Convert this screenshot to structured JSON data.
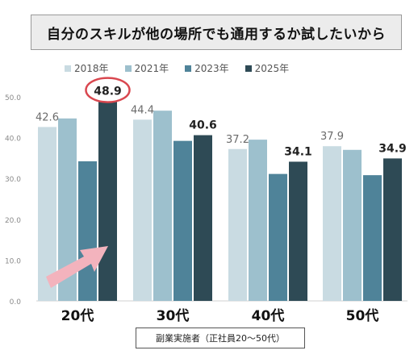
{
  "title": "自分のスキルが他の場所でも通用するか試したいから",
  "note": "副業実施者（正社員20～50代）",
  "colors": {
    "2018年": "#c9dbe2",
    "2021年": "#9dc0cd",
    "2023年": "#4f8399",
    "2025年": "#2e4a55",
    "highlight_ring": "#d9474f",
    "arrow": "#f3b3bd"
  },
  "chart_data": {
    "type": "bar",
    "categories": [
      "20代",
      "30代",
      "40代",
      "50代"
    ],
    "series": [
      {
        "name": "2018年",
        "values": [
          42.6,
          44.4,
          37.2,
          37.9
        ]
      },
      {
        "name": "2021年",
        "values": [
          44.7,
          46.6,
          39.5,
          37.0
        ]
      },
      {
        "name": "2023年",
        "values": [
          34.2,
          39.2,
          31.1,
          30.8
        ]
      },
      {
        "name": "2025年",
        "values": [
          48.9,
          40.6,
          34.1,
          34.9
        ]
      }
    ],
    "data_labels": [
      {
        "category": "20代",
        "series": "2018年",
        "text": "42.6"
      },
      {
        "category": "20代",
        "series": "2025年",
        "text": "48.9"
      },
      {
        "category": "30代",
        "series": "2018年",
        "text": "44.4"
      },
      {
        "category": "30代",
        "series": "2025年",
        "text": "40.6"
      },
      {
        "category": "40代",
        "series": "2018年",
        "text": "37.2"
      },
      {
        "category": "40代",
        "series": "2025年",
        "text": "34.1"
      },
      {
        "category": "50代",
        "series": "2018年",
        "text": "37.9"
      },
      {
        "category": "50代",
        "series": "2025年",
        "text": "34.9"
      }
    ],
    "highlight": {
      "category": "20代",
      "series": "2025年"
    },
    "y_ticks": [
      "0.0",
      "10.0",
      "20.0",
      "30.0",
      "40.0",
      "50.0"
    ],
    "ylim": [
      0,
      50
    ],
    "grid": false,
    "legend": "top"
  }
}
